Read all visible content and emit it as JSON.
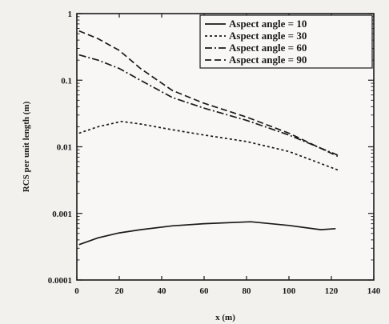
{
  "chart_data": {
    "type": "line",
    "xlabel": "x (m)",
    "ylabel": "RCS per unit length (m)",
    "xlim": [
      0,
      140
    ],
    "ylim": [
      0.0001,
      1
    ],
    "yscale": "log",
    "grid": false,
    "legend_position": "top-right",
    "x_ticks": [
      0,
      20,
      40,
      60,
      80,
      100,
      120,
      140
    ],
    "y_ticks": [
      {
        "value": 0.0001,
        "label": "0.0001"
      },
      {
        "value": 0.001,
        "label": "0.001"
      },
      {
        "value": 0.01,
        "label": "0.01"
      },
      {
        "value": 0.1,
        "label": "0.1"
      },
      {
        "value": 1,
        "label": "1"
      }
    ],
    "series": [
      {
        "name": "Aspect angle = 10",
        "dash": "solid",
        "x": [
          1,
          10,
          20,
          30,
          45,
          60,
          82,
          100,
          115,
          122
        ],
        "y": [
          0.00034,
          0.00043,
          0.00051,
          0.00057,
          0.00065,
          0.0007,
          0.00075,
          0.00066,
          0.00057,
          0.00059
        ]
      },
      {
        "name": "Aspect angle = 30",
        "dash": "dotted",
        "x": [
          1,
          10,
          21,
          30,
          45,
          60,
          80,
          100,
          123
        ],
        "y": [
          0.016,
          0.02,
          0.024,
          0.022,
          0.018,
          0.015,
          0.012,
          0.0085,
          0.0045
        ]
      },
      {
        "name": "Aspect angle = 60",
        "dash": "dashdot",
        "x": [
          1,
          10,
          20,
          30,
          45,
          60,
          80,
          100,
          123
        ],
        "y": [
          0.24,
          0.2,
          0.15,
          0.1,
          0.055,
          0.038,
          0.025,
          0.015,
          0.0075
        ]
      },
      {
        "name": "Aspect angle = 90",
        "dash": "dashed",
        "x": [
          1,
          10,
          20,
          30,
          45,
          60,
          80,
          100,
          123
        ],
        "y": [
          0.55,
          0.42,
          0.28,
          0.15,
          0.07,
          0.045,
          0.028,
          0.016,
          0.0072
        ]
      }
    ]
  }
}
